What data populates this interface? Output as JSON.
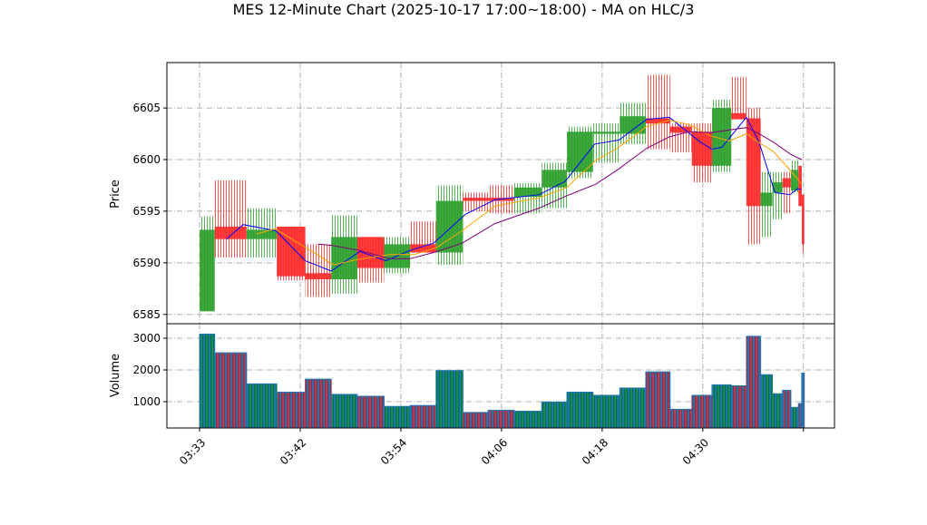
{
  "chart_data": {
    "type": "candlestick",
    "title": "MES 12-Minute Chart (2025-10-17 17:00~18:00) - MA on HLC/3",
    "price_panel": {
      "ylabel": "Price",
      "yticks": [
        6585,
        6590,
        6595,
        6600,
        6605
      ],
      "ylim": [
        6584.1,
        6609.4
      ],
      "grid": true
    },
    "volume_panel": {
      "ylabel": "Volume",
      "yticks": [
        1000,
        2000,
        3000
      ],
      "ylim": [
        171,
        3457
      ],
      "grid": true
    },
    "xaxis": {
      "tick_positions": [
        0,
        12,
        24,
        36,
        48,
        60,
        72
      ],
      "tick_labels": [
        "03:33",
        "03:42",
        "03:54",
        "04:06",
        "04:18",
        "04:30",
        ""
      ],
      "xlim": [
        -3.9,
        75.7
      ]
    },
    "colors": {
      "up": "#2ca02c",
      "down": "#ff2a2a",
      "volume": "#1f77b4",
      "ma_fast": "#0000ff",
      "ma_mid": "#ffa500",
      "ma_slow": "#800080"
    },
    "bars": [
      {
        "start": 0,
        "end": 1.8,
        "open": 6585.3,
        "high": 6594.5,
        "low": 6585.3,
        "close": 6593.2,
        "volume": 3130
      },
      {
        "start": 1.8,
        "end": 5.6,
        "open": 6593.5,
        "high": 6598,
        "low": 6590.5,
        "close": 6592.3,
        "volume": 2540
      },
      {
        "start": 5.6,
        "end": 9.2,
        "open": 6592.3,
        "high": 6595.3,
        "low": 6590.5,
        "close": 6593.2,
        "volume": 1560
      },
      {
        "start": 9.2,
        "end": 12.6,
        "open": 6593.5,
        "high": 6593.5,
        "low": 6588.3,
        "close": 6588.7,
        "volume": 1300
      },
      {
        "start": 12.6,
        "end": 15.7,
        "open": 6589,
        "high": 6591.8,
        "low": 6586.7,
        "close": 6588.4,
        "volume": 1710
      },
      {
        "start": 15.7,
        "end": 18.8,
        "open": 6588.4,
        "high": 6594.6,
        "low": 6587,
        "close": 6592.5,
        "volume": 1230
      },
      {
        "start": 18.8,
        "end": 22.0,
        "open": 6592.5,
        "high": 6592.5,
        "low": 6588.1,
        "close": 6589.5,
        "volume": 1170
      },
      {
        "start": 22.0,
        "end": 25.1,
        "open": 6589.5,
        "high": 6592.5,
        "low": 6589,
        "close": 6591.8,
        "volume": 850
      },
      {
        "start": 25.1,
        "end": 28.2,
        "open": 6591.8,
        "high": 6594,
        "low": 6591,
        "close": 6591,
        "volume": 880
      },
      {
        "start": 28.2,
        "end": 31.4,
        "open": 6591,
        "high": 6597.5,
        "low": 6589.8,
        "close": 6596,
        "volume": 1980
      },
      {
        "start": 31.4,
        "end": 34.4,
        "open": 6596.3,
        "high": 6596.8,
        "low": 6595,
        "close": 6596,
        "volume": 660
      },
      {
        "start": 34.4,
        "end": 37.5,
        "open": 6596.3,
        "high": 6597.5,
        "low": 6594.8,
        "close": 6596,
        "volume": 730
      },
      {
        "start": 37.5,
        "end": 40.8,
        "open": 6596.4,
        "high": 6597.7,
        "low": 6594.8,
        "close": 6597.3,
        "volume": 700
      },
      {
        "start": 40.8,
        "end": 43.8,
        "open": 6597.3,
        "high": 6599.7,
        "low": 6595.3,
        "close": 6599,
        "volume": 990
      },
      {
        "start": 43.8,
        "end": 46.9,
        "open": 6598.8,
        "high": 6603.2,
        "low": 6598.2,
        "close": 6602.7,
        "volume": 1300
      },
      {
        "start": 46.9,
        "end": 50.1,
        "open": 6602.5,
        "high": 6603.5,
        "low": 6599.7,
        "close": 6602.7,
        "volume": 1200
      },
      {
        "start": 50.1,
        "end": 53.2,
        "open": 6602.5,
        "high": 6605.5,
        "low": 6601.5,
        "close": 6604.2,
        "volume": 1430
      },
      {
        "start": 53.2,
        "end": 56.1,
        "open": 6604,
        "high": 6608.2,
        "low": 6601,
        "close": 6603.5,
        "volume": 1940
      },
      {
        "start": 56.1,
        "end": 58.7,
        "open": 6603.2,
        "high": 6603.5,
        "low": 6600.7,
        "close": 6602.6,
        "volume": 760
      },
      {
        "start": 58.7,
        "end": 61.1,
        "open": 6602.7,
        "high": 6603.5,
        "low": 6597.8,
        "close": 6599.4,
        "volume": 1200
      },
      {
        "start": 61.1,
        "end": 63.4,
        "open": 6599.4,
        "high": 6605.8,
        "low": 6598.8,
        "close": 6605,
        "volume": 1530
      },
      {
        "start": 63.4,
        "end": 65.2,
        "open": 6604.5,
        "high": 6608,
        "low": 6603.9,
        "close": 6603.9,
        "volume": 1500
      },
      {
        "start": 65.2,
        "end": 66.9,
        "open": 6604,
        "high": 6605,
        "low": 6591.8,
        "close": 6595.5,
        "volume": 3060
      },
      {
        "start": 66.9,
        "end": 68.3,
        "open": 6595.5,
        "high": 6598.8,
        "low": 6592.5,
        "close": 6596.8,
        "volume": 1850
      },
      {
        "start": 68.3,
        "end": 69.5,
        "open": 6596.8,
        "high": 6598.8,
        "low": 6594.2,
        "close": 6597.8,
        "volume": 1250
      },
      {
        "start": 69.5,
        "end": 70.5,
        "open": 6598.2,
        "high": 6598.8,
        "low": 6594.8,
        "close": 6597.3,
        "volume": 1360
      },
      {
        "start": 70.5,
        "end": 71.4,
        "open": 6597,
        "high": 6599.9,
        "low": 6596.8,
        "close": 6599,
        "volume": 820
      },
      {
        "start": 71.4,
        "end": 71.8,
        "open": 6599.4,
        "high": 6599.4,
        "low": 6595.5,
        "close": 6595.5,
        "volume": 940
      },
      {
        "start": 71.8,
        "end": 72.1,
        "open": 6596.6,
        "high": 6596.6,
        "low": 6591,
        "close": 6591.8,
        "volume": 1900
      }
    ],
    "series": [
      {
        "name": "ma_fast",
        "color": "#0000ff",
        "x": [
          3.2,
          5.2,
          9.1,
          12.6,
          15.7,
          19.1,
          22.2,
          25.1,
          27.9,
          31.7,
          35.2,
          40.5,
          43.6,
          47.1,
          50.0,
          53.3,
          56.0,
          59.7,
          61.1,
          62.3,
          65.2,
          66.7,
          68.6,
          70.4,
          71.3,
          71.7
        ],
        "y": [
          6592.3,
          6593.7,
          6593.1,
          6590.2,
          6589.2,
          6591.1,
          6590.2,
          6591.2,
          6591.9,
          6594.7,
          6596.1,
          6596.6,
          6597.9,
          6601.5,
          6601.9,
          6603.9,
          6604.1,
          6601.7,
          6601.0,
          6601.2,
          6604.1,
          6601.7,
          6596.8,
          6596.6,
          6597.2,
          6597.1
        ]
      },
      {
        "name": "ma_mid",
        "color": "#ffa500",
        "x": [
          6.8,
          9.0,
          12.6,
          16.0,
          18.7,
          22.7,
          25.6,
          28.3,
          31.3,
          35.2,
          40.5,
          43.8,
          47.2,
          50.0,
          53.3,
          56.0,
          58.4,
          60.9,
          63.2,
          65.2,
          66.4,
          68.4,
          70.5,
          71.8
        ],
        "y": [
          6592.8,
          6593.3,
          6591.5,
          6589.8,
          6590.3,
          6590.8,
          6590.8,
          6591.5,
          6593.1,
          6595.5,
          6596.3,
          6597.3,
          6599.9,
          6601.2,
          6603.2,
          6603.8,
          6603.4,
          6602.3,
          6601.8,
          6602.5,
          6601.8,
          6600.8,
          6598.9,
          6597.6
        ]
      },
      {
        "name": "ma_slow",
        "color": "#800080",
        "x": [
          14.1,
          15.7,
          19.1,
          22.7,
          25.1,
          27.9,
          31.3,
          35.2,
          40.5,
          43.8,
          47.2,
          50.0,
          53.3,
          56.0,
          58.4,
          60.9,
          65.2,
          66.7,
          68.4,
          70.5,
          71.8
        ],
        "y": [
          6591.8,
          6591.7,
          6591.2,
          6590.4,
          6590.4,
          6591.0,
          6591.9,
          6593.8,
          6595.3,
          6596.5,
          6597.6,
          6599.1,
          6601.1,
          6602.2,
          6602.7,
          6602.6,
          6603.1,
          6602.5,
          6601.7,
          6600.5,
          6600.0
        ]
      }
    ]
  }
}
